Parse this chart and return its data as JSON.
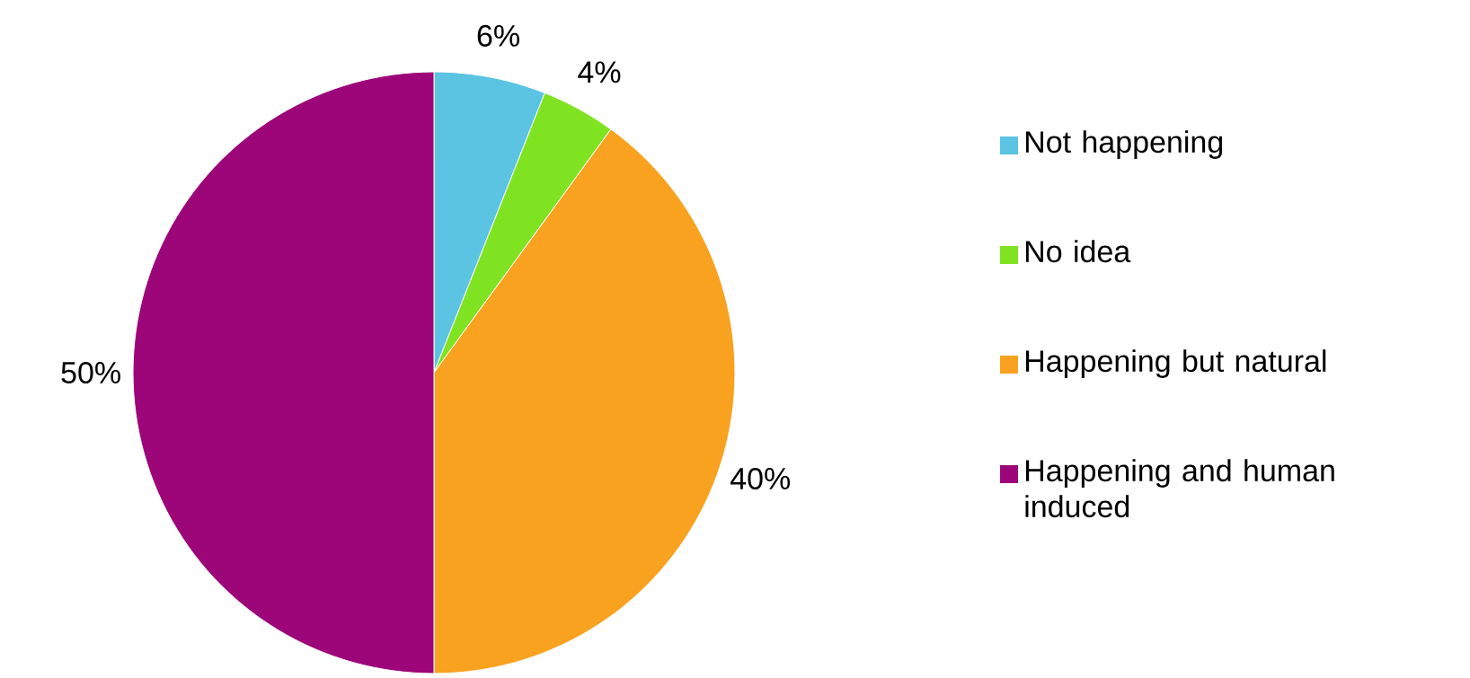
{
  "chart_data": {
    "type": "pie",
    "categories": [
      "Not happening",
      "No idea",
      "Happening but natural",
      "Happening and human induced"
    ],
    "values": [
      6,
      4,
      40,
      50
    ],
    "value_labels": [
      "6%",
      "4%",
      "40%",
      "50%"
    ],
    "colors": [
      "#5bc4e2",
      "#7fe322",
      "#f8a21f",
      "#9c0679"
    ],
    "legend": "right"
  }
}
